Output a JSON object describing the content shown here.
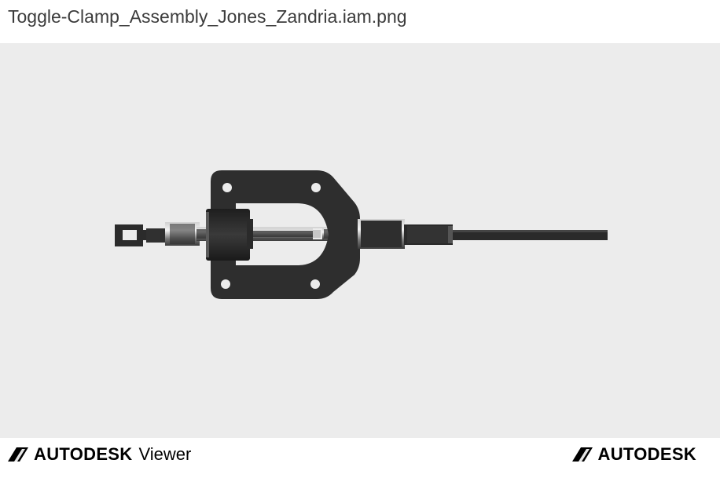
{
  "file": {
    "name": "Toggle-Clamp_Assembly_Jones_Zandria.iam.png"
  },
  "footer": {
    "left_brand": {
      "logo_icon": "autodesk-logo-icon",
      "wordmark": "AUTODESK",
      "product": "Viewer"
    },
    "right_brand": {
      "logo_icon": "autodesk-logo-icon",
      "wordmark": "AUTODESK"
    }
  },
  "colors": {
    "viewport_background": "#ececec",
    "model_dark": "#2b2b2b",
    "text": "#3c3c3c",
    "brand": "#000000"
  }
}
